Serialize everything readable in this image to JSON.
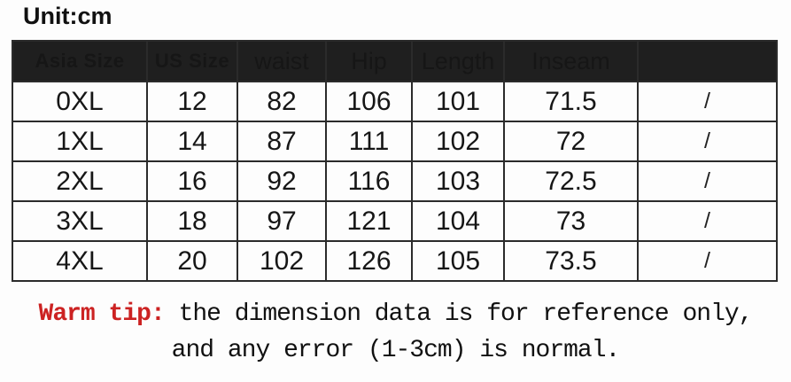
{
  "unit_label": "Unit:cm",
  "size_table": {
    "columns": [
      "Asia Size",
      "US Size",
      "waist",
      "Hip",
      "Length",
      "Inseam",
      ""
    ],
    "rows": [
      [
        "0XL",
        "12",
        "82",
        "106",
        "101",
        "71.5",
        "/"
      ],
      [
        "1XL",
        "14",
        "87",
        "111",
        "102",
        "72",
        "/"
      ],
      [
        "2XL",
        "16",
        "92",
        "116",
        "103",
        "72.5",
        "/"
      ],
      [
        "3XL",
        "18",
        "97",
        "121",
        "104",
        "73",
        "/"
      ],
      [
        "4XL",
        "20",
        "102",
        "126",
        "105",
        "73.5",
        "/"
      ]
    ]
  },
  "warm_tip": {
    "label": "Warm tip:",
    "line1": "the dimension data is for reference only,",
    "line2": "and any error (1-3cm) is normal."
  },
  "colors": {
    "header_bg": "#1f1f1f",
    "header_text": "#fafafa",
    "border": "#2b2b2b",
    "warm_tip_label": "#cc2222",
    "background": "#fdfdfd"
  },
  "chart_data": {
    "type": "table",
    "title": "Unit:cm",
    "columns": [
      "Asia Size",
      "US Size",
      "waist",
      "Hip",
      "Length",
      "Inseam",
      ""
    ],
    "rows": [
      {
        "asia_size": "0XL",
        "us_size": 12,
        "waist": 82,
        "hip": 106,
        "length": 101,
        "inseam": 71.5,
        "extra": "/"
      },
      {
        "asia_size": "1XL",
        "us_size": 14,
        "waist": 87,
        "hip": 111,
        "length": 102,
        "inseam": 72,
        "extra": "/"
      },
      {
        "asia_size": "2XL",
        "us_size": 16,
        "waist": 92,
        "hip": 116,
        "length": 103,
        "inseam": 72.5,
        "extra": "/"
      },
      {
        "asia_size": "3XL",
        "us_size": 18,
        "waist": 97,
        "hip": 121,
        "length": 104,
        "inseam": 73,
        "extra": "/"
      },
      {
        "asia_size": "4XL",
        "us_size": 20,
        "waist": 102,
        "hip": 126,
        "length": 105,
        "inseam": 73.5,
        "extra": "/"
      }
    ],
    "footnote": "Warm tip: the dimension data is for reference only, and any error (1-3cm) is normal."
  }
}
